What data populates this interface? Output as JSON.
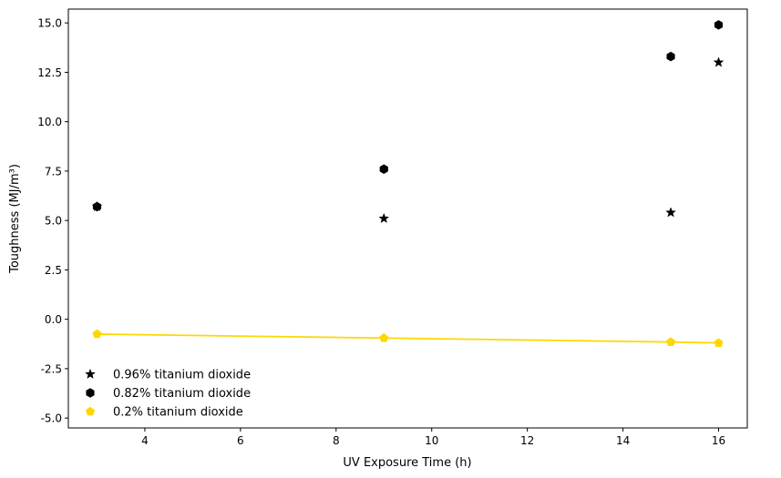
{
  "chart_data": {
    "type": "scatter",
    "title": "",
    "xlabel": "UV Exposure Time (h)",
    "ylabel": "Toughness (MJ/m³)",
    "xlim": [
      2.4,
      16.6
    ],
    "ylim": [
      -5.5,
      15.7
    ],
    "xticks": [
      4,
      6,
      8,
      10,
      12,
      14,
      16
    ],
    "yticks": [
      -5.0,
      -2.5,
      0.0,
      2.5,
      5.0,
      7.5,
      10.0,
      12.5,
      15.0
    ],
    "grid": false,
    "legend_position": "lower-left",
    "series": [
      {
        "name": "0.96% titanium dioxide",
        "marker": "star",
        "color": "#000000",
        "x": [
          3,
          9,
          15,
          16
        ],
        "y": [
          5.7,
          5.1,
          5.4,
          13.0
        ]
      },
      {
        "name": "0.82% titanium dioxide",
        "marker": "hexagon",
        "color": "#000000",
        "x": [
          3,
          9,
          15,
          16
        ],
        "y": [
          5.7,
          7.6,
          13.3,
          14.9
        ]
      },
      {
        "name": "0.2% titanium dioxide",
        "marker": "pentagon",
        "color": "#FFD700",
        "line": true,
        "x": [
          3,
          9,
          15,
          16
        ],
        "y": [
          -0.75,
          -0.95,
          -1.15,
          -1.2
        ]
      }
    ]
  }
}
